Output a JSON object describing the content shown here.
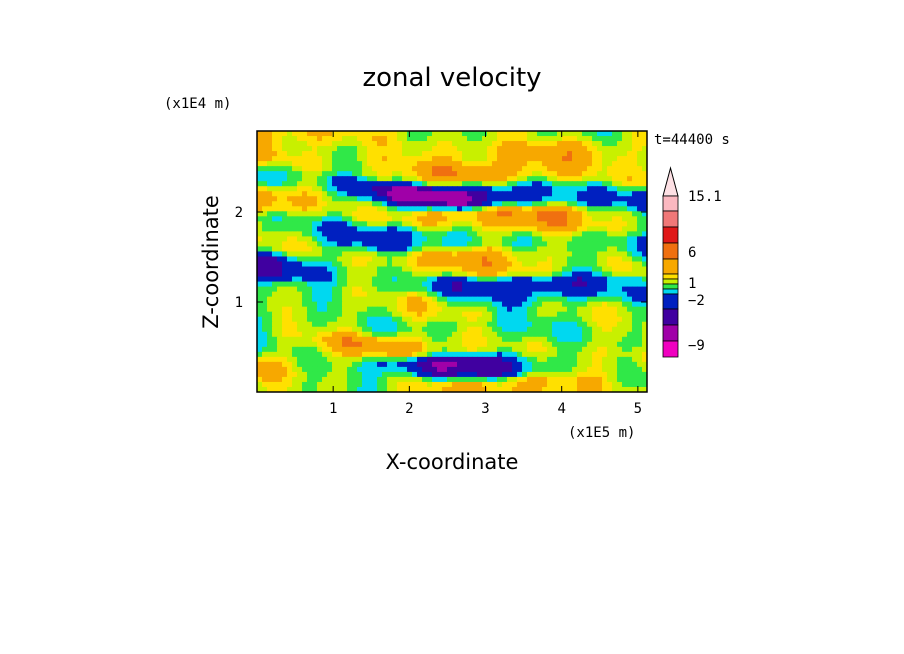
{
  "chart_data": {
    "type": "heatmap",
    "title": "zonal velocity",
    "xlabel": "X-coordinate",
    "ylabel": "Z-coordinate",
    "x_unit": "(x1E5 m)",
    "y_unit": "(x1E4 m)",
    "time_label": "t=44400 s",
    "xlim": [
      0,
      5.12
    ],
    "ylim": [
      0,
      2.9
    ],
    "xticks": [
      "1",
      "2",
      "3",
      "4",
      "5"
    ],
    "yticks": [
      "1",
      "2"
    ],
    "colorbar": {
      "tick_labels": [
        "15.1",
        "6",
        "1",
        "−2",
        "−9"
      ],
      "colors_top_to_bottom": [
        "#fbb8c0",
        "#f07878",
        "#e01818",
        "#f07010",
        "#f7a800",
        "#ffe000",
        "#c8f000",
        "#30e848",
        "#00d8f0",
        "#0020c0",
        "#4000a0",
        "#a000a8",
        "#f000c0"
      ],
      "extend_top": true
    },
    "bands": [
      {
        "z": 2.75,
        "u": 3,
        "phase": 0.0
      },
      {
        "z": 2.5,
        "u": 4,
        "phase": 1.3
      },
      {
        "z": 2.25,
        "u": -8,
        "phase": 2.4
      },
      {
        "z": 2.0,
        "u": 5,
        "phase": 0.7
      },
      {
        "z": 1.75,
        "u": -3,
        "phase": 3.1
      },
      {
        "z": 1.5,
        "u": 3,
        "phase": 1.9
      },
      {
        "z": 1.25,
        "u": -5,
        "phase": 0.4
      },
      {
        "z": 1.0,
        "u": 1,
        "phase": 2.7
      },
      {
        "z": 0.75,
        "u": -1,
        "phase": 1.1
      },
      {
        "z": 0.5,
        "u": 4,
        "phase": 3.6
      },
      {
        "z": 0.35,
        "u": -6,
        "phase": 2.0
      },
      {
        "z": 0.15,
        "u": 3,
        "phase": 0.9
      }
    ]
  }
}
